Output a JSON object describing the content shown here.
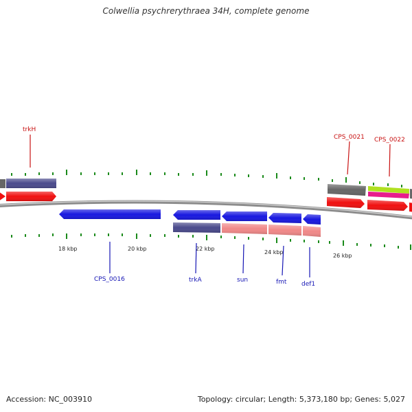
{
  "title": "Colwellia psychrerythraea 34H, complete genome",
  "footer": {
    "accession": "Accession: NC_003910",
    "stats": "Topology: circular; Length: 5,373,180 bp; Genes: 5,027"
  },
  "colors": {
    "backbone": "#8c8c8c",
    "tick": "#1a8a1a",
    "label_top": "#c81010",
    "label_bottom": "#1414b4",
    "blue_gene": "#1818e0",
    "red_gene": "#f01010",
    "purple_bar": "#4a4a8c",
    "salmon_bar": "#f08888",
    "gray_bar": "#666666",
    "lime_bar": "#b0e020",
    "pink_bar": "#e81c8c"
  },
  "scale_labels": [
    "18 kbp",
    "20 kbp",
    "22 kbp",
    "24 kbp",
    "26 kbp"
  ],
  "gene_labels": {
    "top": [
      "trkH",
      "CPS_0021",
      "CPS_0022"
    ],
    "bottom": [
      "CPS_0016",
      "trkA",
      "sun",
      "fmt",
      "def1"
    ]
  }
}
